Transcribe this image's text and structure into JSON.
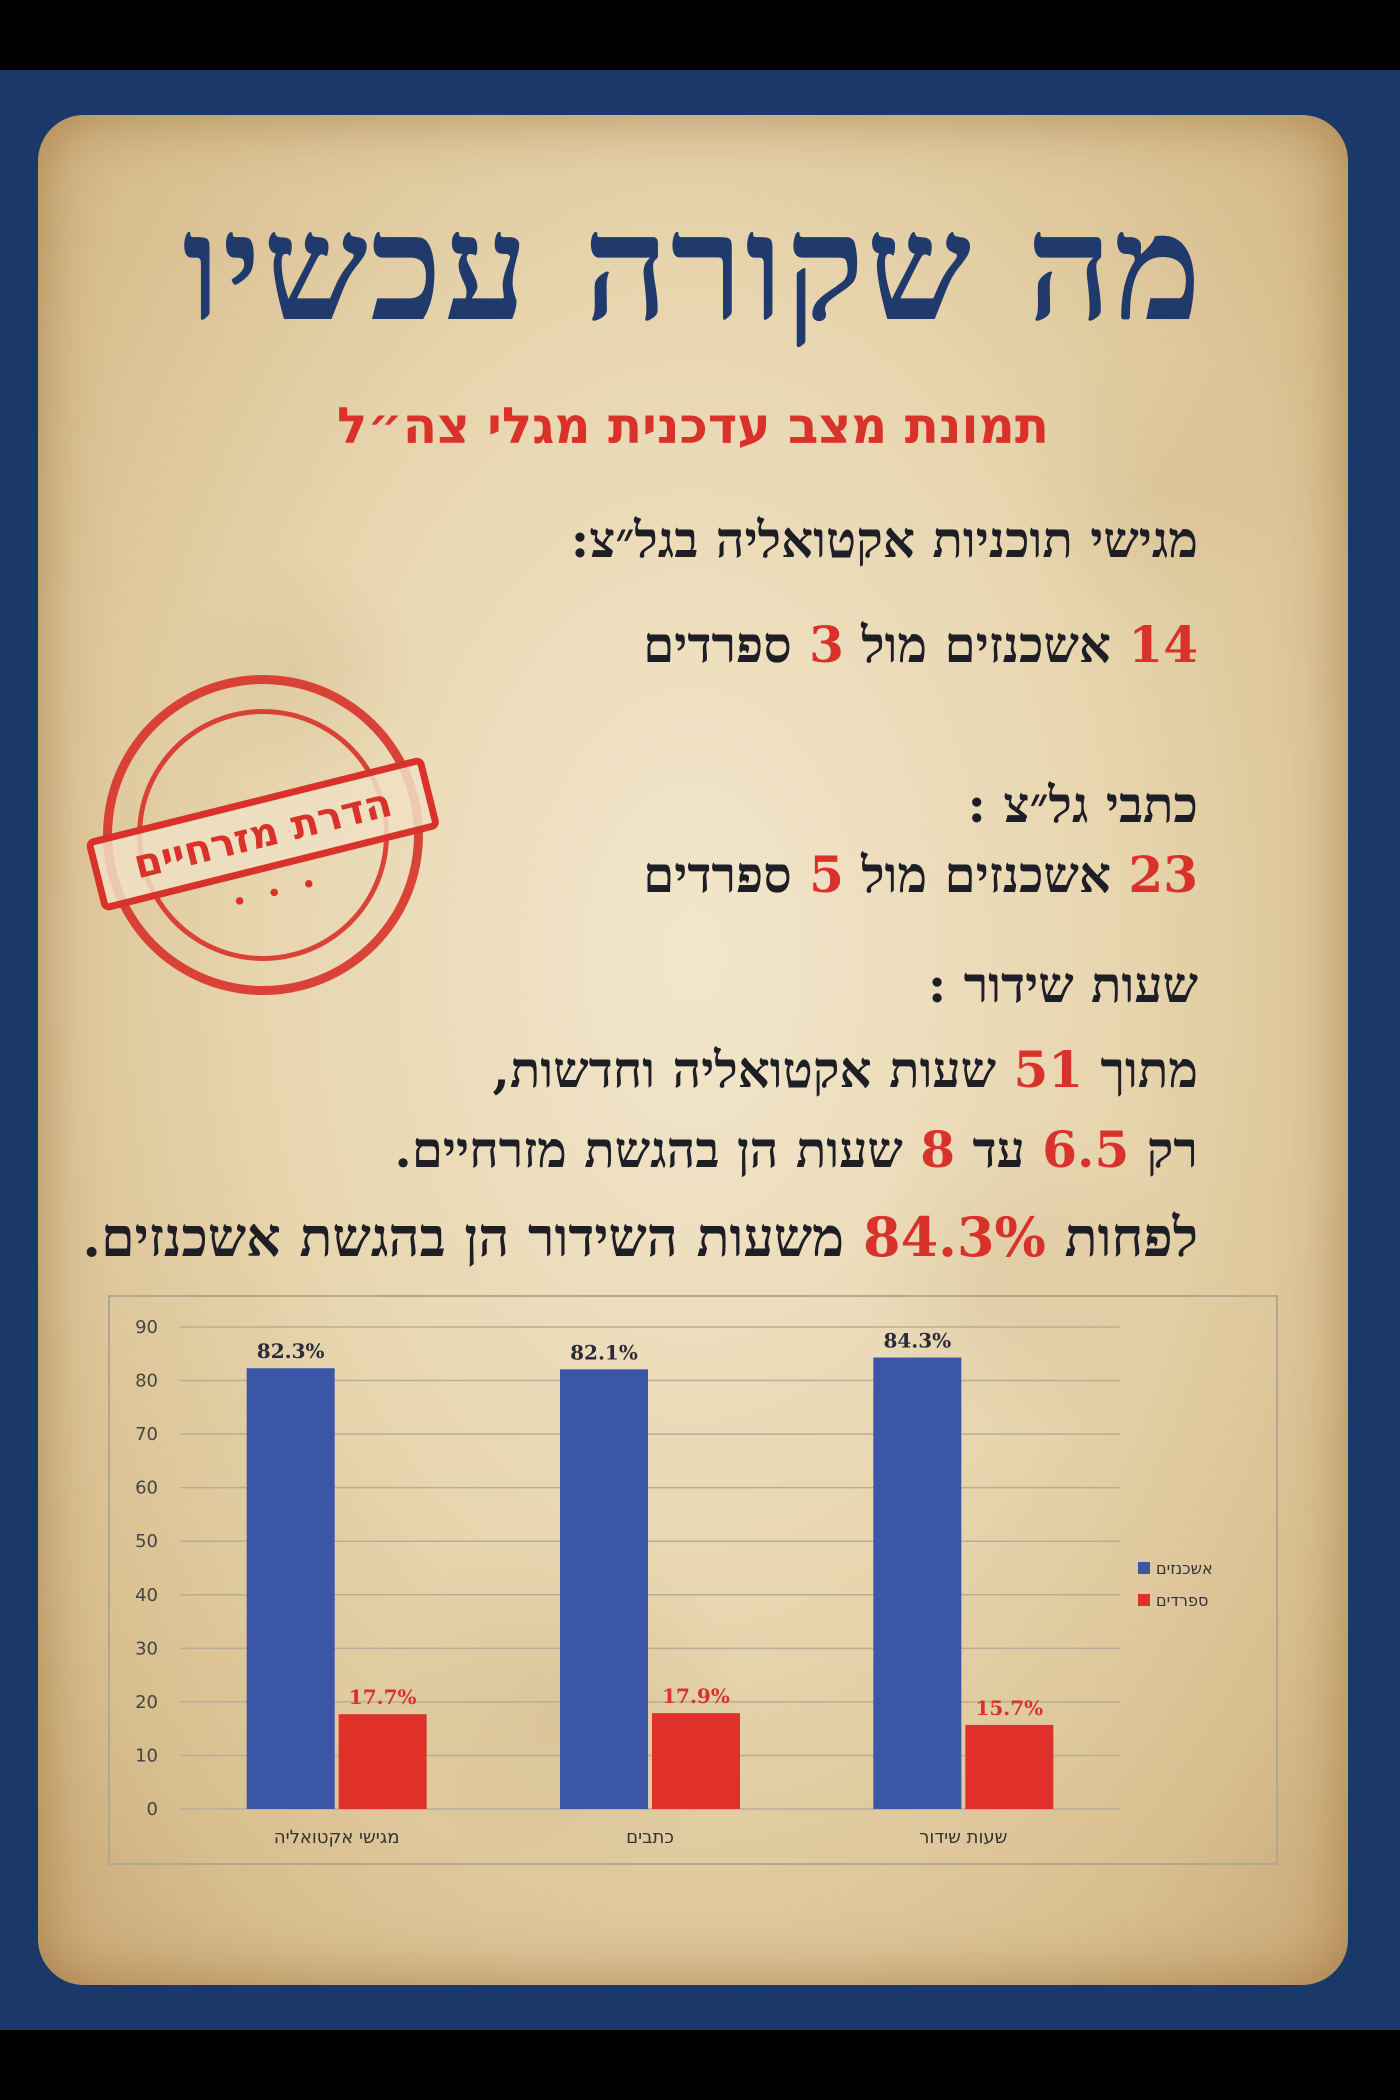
{
  "title": "מה שקורה עכשיו",
  "subtitle": "תמונת מצב עדכנית מגלי צה״ל",
  "sections": {
    "hosts_heading": "מגישי תוכניות אקטואליה בגל״צ:",
    "hosts_a": "14",
    "hosts_b": "אשכנזים מול",
    "hosts_c": "3",
    "hosts_d": "ספרדים",
    "writers_heading": "כתבי גל״צ :",
    "writers_a": "23",
    "writers_b": "אשכנזים מול",
    "writers_c": "5",
    "writers_d": "ספרדים",
    "hours_heading": "שעות שידור :",
    "hours_l1_a": "מתוך",
    "hours_l1_b": "51",
    "hours_l1_c": "שעות אקטואליה וחדשות,",
    "hours_l2_a": "רק",
    "hours_l2_b": "6.5",
    "hours_l2_c": "עד",
    "hours_l2_d": "8",
    "hours_l2_e": "שעות הן בהגשת מזרחיים.",
    "hours_l3_a": "לפחות",
    "hours_l3_b": "84.3%",
    "hours_l3_c": "משעות השידור הן בהגשת אשכנזים."
  },
  "stamp": {
    "text": "הדרת מזרחיים",
    "dots": "• • •"
  },
  "colors": {
    "navy": "#1f3a6b",
    "red": "#d8322a",
    "bar_blue": "#3b56a7",
    "bar_red": "#e0302a"
  },
  "chart_data": {
    "type": "bar",
    "categories": [
      "מגישי אקטואליה",
      "כתבים",
      "שעות שידור"
    ],
    "series": [
      {
        "name": "אשכנזים",
        "values": [
          82.3,
          82.1,
          84.3
        ],
        "labels": [
          "82.3%",
          "82.1%",
          "84.3%"
        ],
        "color": "#3b56a7"
      },
      {
        "name": "ספרדים",
        "values": [
          17.7,
          17.9,
          15.7
        ],
        "labels": [
          "17.7%",
          "17.9%",
          "15.7%"
        ],
        "color": "#e0302a"
      }
    ],
    "ylim": [
      0,
      90
    ],
    "yticks": [
      0,
      10,
      20,
      30,
      40,
      50,
      60,
      70,
      80,
      90
    ],
    "grid": true,
    "legend": "right"
  }
}
